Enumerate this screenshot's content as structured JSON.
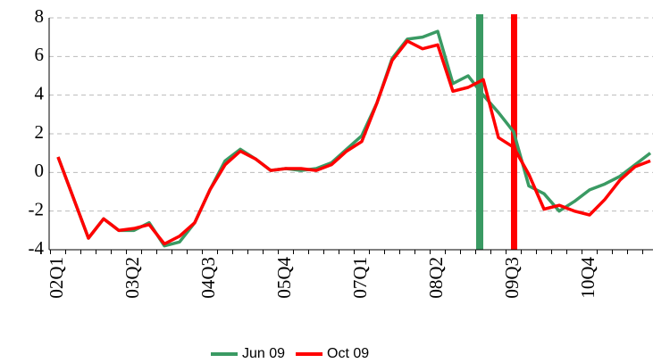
{
  "chart_data": {
    "type": "line",
    "categories": [
      "02Q1",
      null,
      null,
      null,
      null,
      "03Q2",
      null,
      null,
      null,
      null,
      "04Q3",
      null,
      null,
      null,
      null,
      "05Q4",
      null,
      null,
      null,
      null,
      "07Q1",
      null,
      null,
      null,
      null,
      "08Q2",
      null,
      null,
      null,
      null,
      "09Q3",
      null,
      null,
      null,
      null,
      "10Q4",
      null,
      null,
      null,
      null
    ],
    "series": [
      {
        "name": "Jun 09",
        "color": "#3a9a63",
        "values": [
          0.8,
          -1.3,
          -3.4,
          -2.4,
          -3.0,
          -3.0,
          -2.6,
          -3.8,
          -3.6,
          -2.6,
          -0.9,
          0.6,
          1.2,
          0.7,
          0.1,
          0.2,
          0.1,
          0.2,
          0.5,
          1.2,
          1.9,
          3.6,
          5.9,
          6.9,
          7.0,
          7.3,
          4.6,
          5.0,
          4.0,
          3.1,
          2.1,
          -0.7,
          -1.1,
          -2.0,
          -1.5,
          -0.9,
          -0.6,
          -0.2,
          0.4,
          1.0
        ]
      },
      {
        "name": "Oct 09",
        "color": "#ff0000",
        "values": [
          0.8,
          -1.3,
          -3.4,
          -2.4,
          -3.0,
          -2.9,
          -2.7,
          -3.7,
          -3.3,
          -2.6,
          -0.9,
          0.4,
          1.1,
          0.7,
          0.1,
          0.2,
          0.2,
          0.1,
          0.4,
          1.1,
          1.6,
          3.6,
          5.8,
          6.8,
          6.4,
          6.6,
          4.2,
          4.4,
          4.8,
          1.8,
          1.3,
          -0.1,
          -1.9,
          -1.7,
          -2.0,
          -2.2,
          -1.4,
          -0.4,
          0.3,
          0.6
        ]
      }
    ],
    "ylim": [
      -4,
      8
    ],
    "yticks": [
      -4,
      -2,
      0,
      2,
      4,
      6,
      8
    ],
    "grid": true,
    "legend": "bottom"
  }
}
